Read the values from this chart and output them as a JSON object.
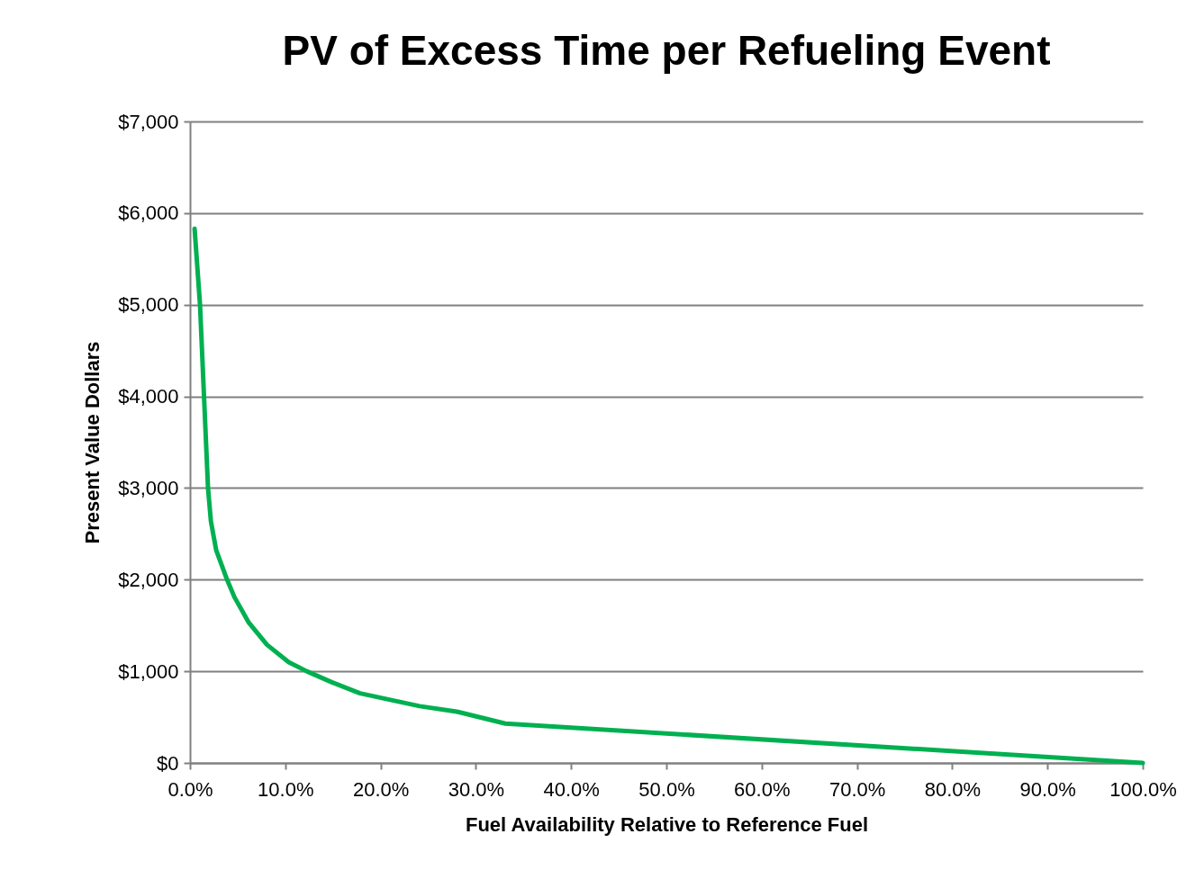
{
  "chart_data": {
    "type": "line",
    "title": "PV of Excess Time per Refueling Event",
    "xlabel": "Fuel Availability  Relative to Reference Fuel",
    "ylabel": "Present Value Dollars",
    "x": [
      0.48,
      1.05,
      1.47,
      1.89,
      2.19,
      2.75,
      3.89,
      4.66,
      6.18,
      8.08,
      10.36,
      12.26,
      14.9,
      17.85,
      24.1,
      28,
      33.1,
      100
    ],
    "series": [
      {
        "color": "#00b050",
        "values": [
          5830,
          5000,
          4000,
          3000,
          2640,
          2320,
          2000,
          1810,
          1530,
          1290,
          1100,
          1000,
          880,
          760,
          620,
          560,
          430,
          0
        ]
      }
    ],
    "xlim": [
      0,
      100
    ],
    "xticks": [
      {
        "value": 0,
        "label": "0.0%"
      },
      {
        "value": 10,
        "label": "10.0%"
      },
      {
        "value": 20,
        "label": "20.0%"
      },
      {
        "value": 30,
        "label": "30.0%"
      },
      {
        "value": 40,
        "label": "40.0%"
      },
      {
        "value": 50,
        "label": "50.0%"
      },
      {
        "value": 60,
        "label": "60.0%"
      },
      {
        "value": 70,
        "label": "70.0%"
      },
      {
        "value": 80,
        "label": "80.0%"
      },
      {
        "value": 90,
        "label": "90.0%"
      },
      {
        "value": 100,
        "label": "100.0%"
      }
    ],
    "ylim": [
      0,
      7000
    ],
    "yticks": [
      {
        "value": 0,
        "label": "$0"
      },
      {
        "value": 1000,
        "label": "$1,000"
      },
      {
        "value": 2000,
        "label": "$2,000"
      },
      {
        "value": 3000,
        "label": "$3,000"
      },
      {
        "value": 4000,
        "label": "$4,000"
      },
      {
        "value": 5000,
        "label": "$5,000"
      },
      {
        "value": 6000,
        "label": "$6,000"
      },
      {
        "value": 7000,
        "label": "$7,000"
      }
    ],
    "grid": "y",
    "marker": "none",
    "line_style": "solid"
  }
}
